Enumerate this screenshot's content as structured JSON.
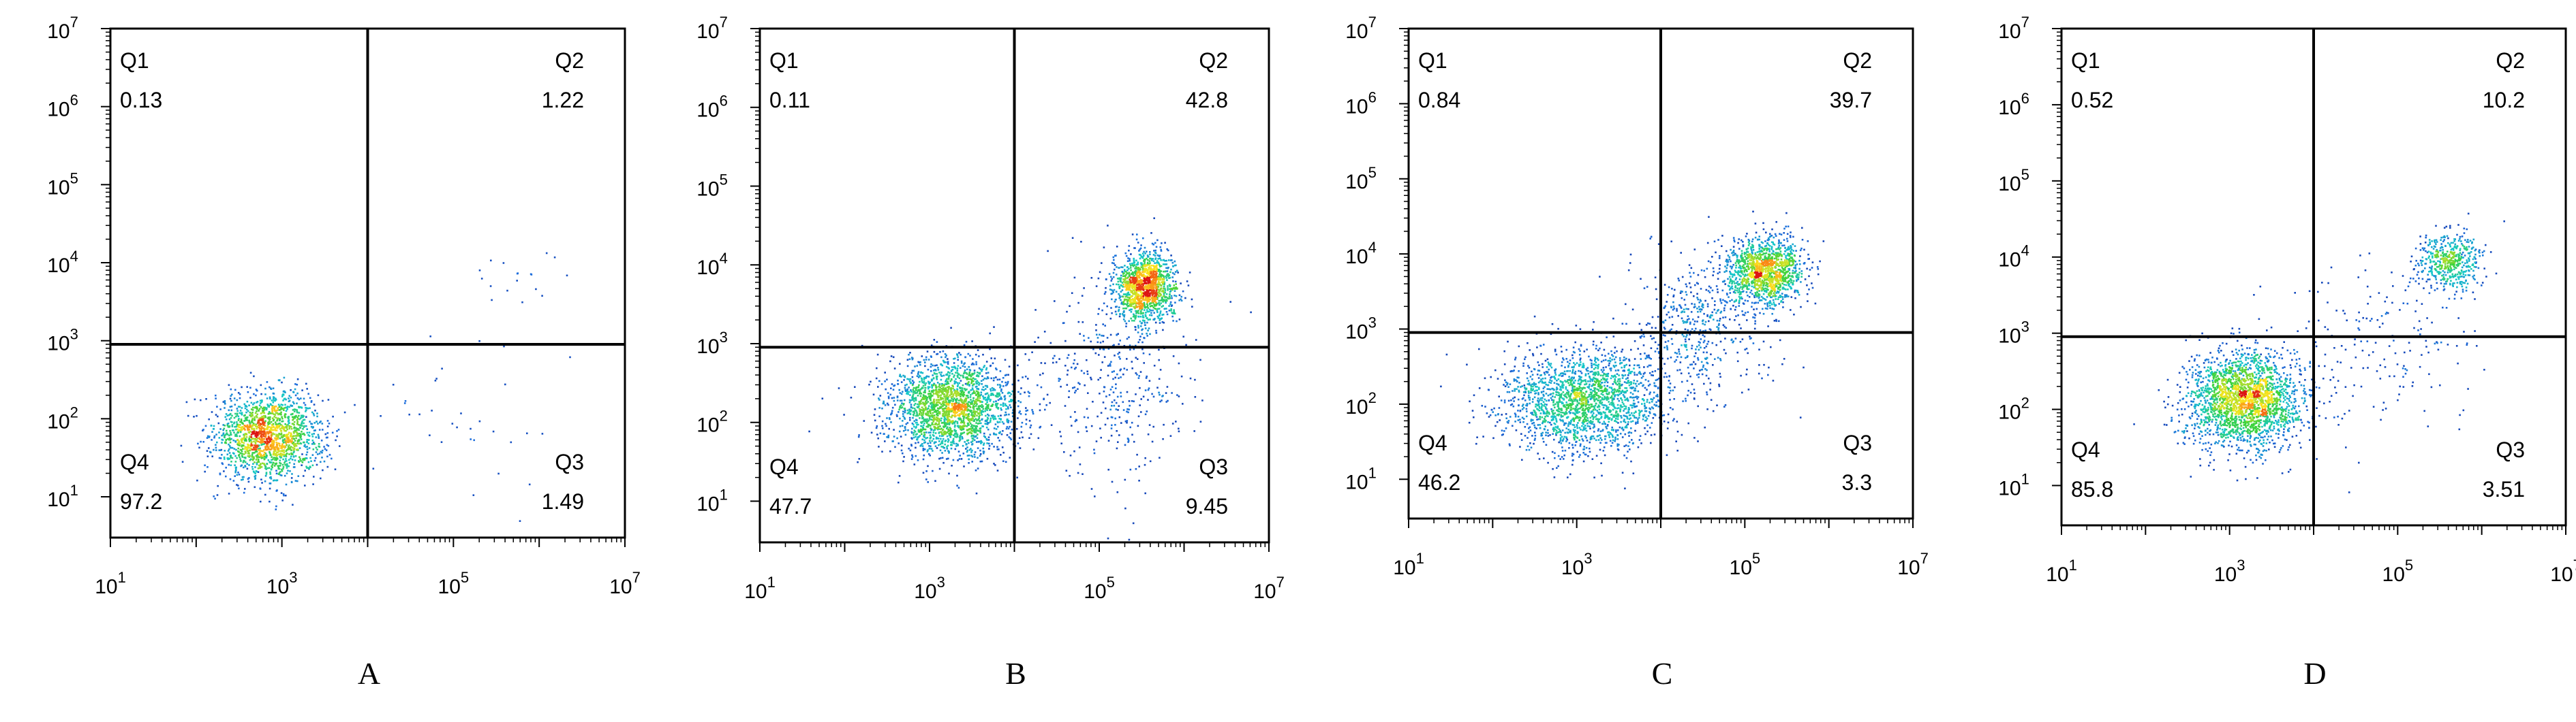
{
  "panel_letters": [
    "A",
    "B",
    "C",
    "D"
  ],
  "chart_data": [
    {
      "type": "scatter",
      "panel_label": "A",
      "xscale": "log",
      "yscale": "log",
      "xlim": [
        10,
        10000000
      ],
      "ylim": [
        3,
        10000000
      ],
      "x_ticks": [
        10,
        1000,
        100000,
        10000000
      ],
      "y_ticks": [
        10,
        100,
        1000,
        10000,
        100000,
        1000000,
        10000000
      ],
      "gate": {
        "x": 10000,
        "y": 900
      },
      "quadrants": [
        {
          "name": "Q1",
          "value": "0.13"
        },
        {
          "name": "Q2",
          "value": "1.22"
        },
        {
          "name": "Q3",
          "value": "1.49"
        },
        {
          "name": "Q4",
          "value": "97.2"
        }
      ],
      "populations": [
        {
          "center_x": 700,
          "center_y": 60,
          "spread_x_log": 0.32,
          "spread_y_log": 0.28,
          "count": 1700
        },
        {
          "center_x": 600000,
          "center_y": 6000,
          "spread_x_log": 0.25,
          "spread_y_log": 0.18,
          "count": 18
        },
        {
          "center_x": 100000,
          "center_y": 200,
          "spread_x_log": 0.55,
          "spread_y_log": 0.6,
          "count": 35
        }
      ]
    },
    {
      "type": "scatter",
      "panel_label": "B",
      "xscale": "log",
      "yscale": "log",
      "xlim": [
        10,
        10000000
      ],
      "ylim": [
        3,
        10000000
      ],
      "x_ticks": [
        10,
        1000,
        100000,
        10000000
      ],
      "y_ticks": [
        10,
        100,
        1000,
        10000,
        100000,
        1000000,
        10000000
      ],
      "gate": {
        "x": 10000,
        "y": 900
      },
      "quadrants": [
        {
          "name": "Q1",
          "value": "0.11"
        },
        {
          "name": "Q2",
          "value": "42.8"
        },
        {
          "name": "Q3",
          "value": "9.45"
        },
        {
          "name": "Q4",
          "value": "47.7"
        }
      ],
      "populations": [
        {
          "center_x": 1800,
          "center_y": 150,
          "spread_x_log": 0.38,
          "spread_y_log": 0.32,
          "count": 2200
        },
        {
          "center_x": 350000,
          "center_y": 5000,
          "spread_x_log": 0.18,
          "spread_y_log": 0.22,
          "count": 1300
        },
        {
          "center_x": 150000,
          "center_y": 400,
          "spread_x_log": 0.45,
          "spread_y_log": 0.65,
          "count": 400
        }
      ]
    },
    {
      "type": "scatter",
      "panel_label": "C",
      "xscale": "log",
      "yscale": "log",
      "xlim": [
        10,
        10000000
      ],
      "ylim": [
        3,
        10000000
      ],
      "x_ticks": [
        10,
        1000,
        100000,
        10000000
      ],
      "y_ticks": [
        10,
        100,
        1000,
        10000,
        100000,
        1000000,
        10000000
      ],
      "gate": {
        "x": 10000,
        "y": 900
      },
      "quadrants": [
        {
          "name": "Q1",
          "value": "0.84"
        },
        {
          "name": "Q2",
          "value": "39.7"
        },
        {
          "name": "Q3",
          "value": "3.3"
        },
        {
          "name": "Q4",
          "value": "46.2"
        }
      ],
      "populations": [
        {
          "center_x": 1200,
          "center_y": 110,
          "spread_x_log": 0.5,
          "spread_y_log": 0.35,
          "count": 2000
        },
        {
          "center_x": 180000,
          "center_y": 6000,
          "spread_x_log": 0.22,
          "spread_y_log": 0.22,
          "count": 1300
        },
        {
          "center_x": 30000,
          "center_y": 1200,
          "spread_x_log": 0.4,
          "spread_y_log": 0.45,
          "count": 500
        }
      ]
    },
    {
      "type": "scatter",
      "panel_label": "D",
      "xscale": "log",
      "yscale": "log",
      "xlim": [
        10,
        10000000
      ],
      "ylim": [
        3,
        10000000
      ],
      "x_ticks": [
        10,
        1000,
        100000,
        10000000
      ],
      "y_ticks": [
        10,
        100,
        1000,
        10000,
        100000,
        1000000,
        10000000
      ],
      "gate": {
        "x": 10000,
        "y": 900
      },
      "quadrants": [
        {
          "name": "Q1",
          "value": "0.52"
        },
        {
          "name": "Q2",
          "value": "10.2"
        },
        {
          "name": "Q3",
          "value": "3.51"
        },
        {
          "name": "Q4",
          "value": "85.8"
        }
      ],
      "populations": [
        {
          "center_x": 1500,
          "center_y": 130,
          "spread_x_log": 0.35,
          "spread_y_log": 0.32,
          "count": 2300
        },
        {
          "center_x": 400000,
          "center_y": 9000,
          "spread_x_log": 0.2,
          "spread_y_log": 0.18,
          "count": 500
        },
        {
          "center_x": 60000,
          "center_y": 800,
          "spread_x_log": 0.6,
          "spread_y_log": 0.6,
          "count": 180
        }
      ]
    }
  ]
}
